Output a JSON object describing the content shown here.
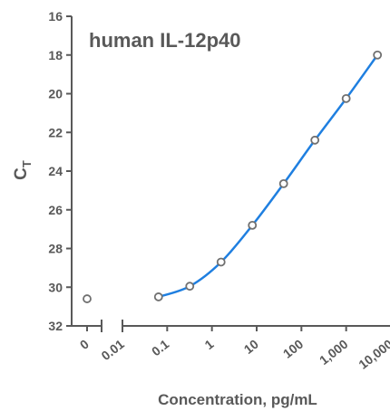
{
  "chart_data": {
    "type": "scatter",
    "title": "human IL-12p40",
    "xlabel": "Concentration, pg/mL",
    "ylabel": "C",
    "ylabel_sub": "T",
    "y_inverted": true,
    "ylim": [
      16,
      32
    ],
    "x_scale": "log",
    "xlim": [
      0.01,
      10000
    ],
    "x_broken_axis": true,
    "yticks": [
      "16",
      "18",
      "20",
      "22",
      "24",
      "26",
      "28",
      "30",
      "32"
    ],
    "xticks": [
      "0",
      "0.01",
      "0.1",
      "1",
      "10",
      "100",
      "1,000",
      "10,000"
    ],
    "zero_point": {
      "x": 0,
      "y": 30.6
    },
    "series": [
      {
        "x": [
          0.064,
          0.32,
          1.6,
          8,
          40,
          200,
          1000,
          5000
        ],
        "y": [
          30.5,
          29.95,
          28.7,
          26.8,
          24.65,
          22.4,
          20.25,
          18.0
        ],
        "marker": "open-circle",
        "fit_line": true
      }
    ],
    "colors": {
      "axis": "#595959",
      "text": "#595959",
      "fit_line": "#1f7fe0",
      "marker": "#707070"
    },
    "grid": false,
    "legend": "none"
  }
}
